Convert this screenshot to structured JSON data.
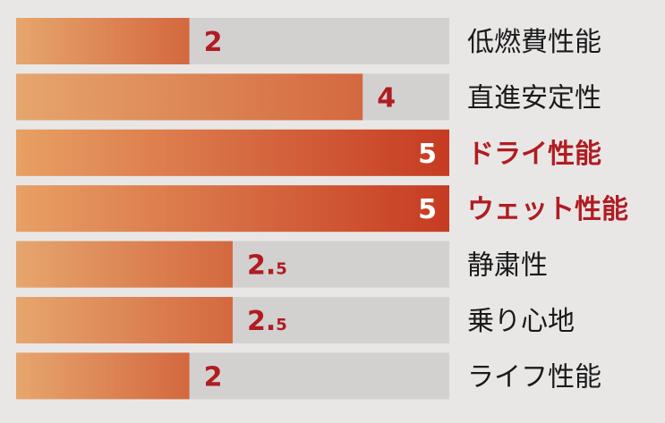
{
  "chart_data": {
    "type": "bar",
    "orientation": "horizontal",
    "categories": [
      "低燃費性能",
      "直進安定性",
      "ドライ性能",
      "ウェット性能",
      "静粛性",
      "乗り心地",
      "ライフ性能"
    ],
    "values": [
      2,
      4,
      5,
      5,
      2.5,
      2.5,
      2
    ],
    "value_labels": [
      "2",
      "4",
      "5",
      "5",
      "2.5",
      "2.5",
      "2"
    ],
    "highlighted": [
      false,
      false,
      true,
      true,
      false,
      false,
      false
    ],
    "xlim": [
      0,
      5
    ],
    "title": "",
    "xlabel": "",
    "ylabel": "",
    "grid": false,
    "legend": "none"
  },
  "colors": {
    "background": "#e9e7e6",
    "track": "#d3d1d0",
    "bar_start": "#e6a66d",
    "bar_end": "#d4683f",
    "bar_full_start": "#e8a064",
    "bar_full_end": "#c63b22",
    "value_label": "#b01c22",
    "category_label": "#1a1a1a",
    "highlight_label": "#b01c22"
  }
}
